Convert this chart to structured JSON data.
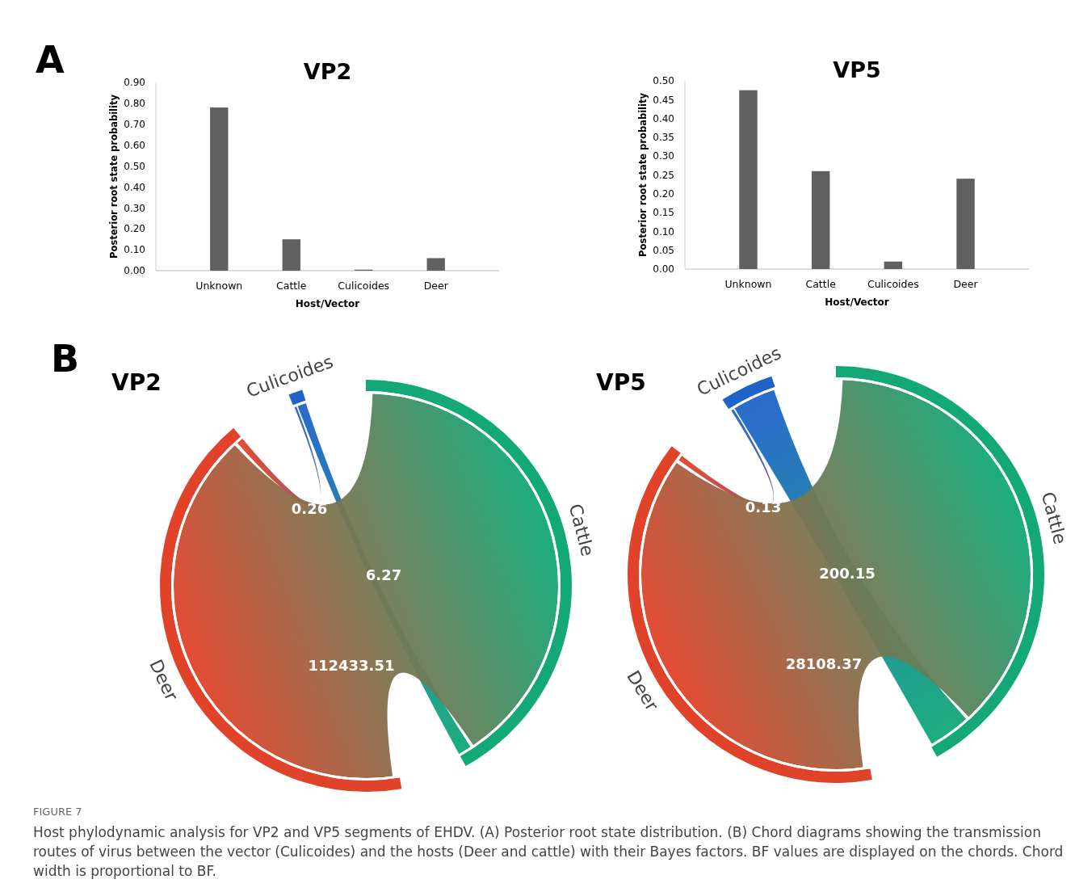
{
  "chart_data": [
    {
      "type": "bar",
      "title": "VP2",
      "xlabel": "Host/Vector",
      "ylabel": "Posterior root state probability",
      "categories": [
        "Unknown",
        "Cattle",
        "Culicoides",
        "Deer"
      ],
      "values": [
        0.78,
        0.15,
        0.005,
        0.06
      ],
      "color": "#606060",
      "ylim": [
        0,
        0.9
      ],
      "yticks": [
        {
          "value": 0,
          "label": "0.00"
        },
        {
          "value": 0.1,
          "label": "0.10"
        },
        {
          "value": 0.2,
          "label": "0.20"
        },
        {
          "value": 0.3,
          "label": "0.30"
        },
        {
          "value": 0.4,
          "label": "0.40"
        },
        {
          "value": 0.5,
          "label": "0.50"
        },
        {
          "value": 0.6,
          "label": "0.60"
        },
        {
          "value": 0.7,
          "label": "0.70"
        },
        {
          "value": 0.8,
          "label": "0.80"
        },
        {
          "value": 0.9,
          "label": "0.90"
        }
      ],
      "grid": false,
      "annotations": [
        "A"
      ]
    },
    {
      "type": "bar",
      "title": "VP5",
      "xlabel": "Host/Vector",
      "ylabel": "Posterior root state probability",
      "categories": [
        "Unknown",
        "Cattle",
        "Culicoides",
        "Deer"
      ],
      "values": [
        0.475,
        0.26,
        0.02,
        0.24
      ],
      "color": "#606060",
      "ylim": [
        0,
        0.5
      ],
      "yticks": [
        {
          "value": 0,
          "label": "0.00"
        },
        {
          "value": 0.05,
          "label": "0.05"
        },
        {
          "value": 0.1,
          "label": "0.10"
        },
        {
          "value": 0.15,
          "label": "0.15"
        },
        {
          "value": 0.2,
          "label": "0.20"
        },
        {
          "value": 0.25,
          "label": "0.25"
        },
        {
          "value": 0.3,
          "label": "0.30"
        },
        {
          "value": 0.35,
          "label": "0.35"
        },
        {
          "value": 0.4,
          "label": "0.40"
        },
        {
          "value": 0.45,
          "label": "0.45"
        },
        {
          "value": 0.5,
          "label": "0.50"
        }
      ],
      "grid": false
    },
    {
      "type": "other",
      "title": "VP2",
      "categories": [
        "Culicoides",
        "Cattle",
        "Deer"
      ],
      "colors": [
        "#1f63c9",
        "#12a878",
        "#e0432a"
      ],
      "annotations": [
        "0.26",
        "6.27",
        "112433.51",
        "B"
      ]
    },
    {
      "type": "other",
      "title": "VP5",
      "categories": [
        "Culicoides",
        "Cattle",
        "Deer"
      ],
      "colors": [
        "#1f63c9",
        "#12a878",
        "#e0432a"
      ],
      "annotations": [
        "0.13",
        "200.15",
        "28108.37",
        "FIGURE 7",
        "Host phylodynamic analysis for VP2 and VP5 segments of EHDV. (A) Posterior root state distribution. (B) Chord diagrams showing the transmission routes of virus between the vector (Culicoides) and the hosts (Deer and cattle) with their Bayes factors. BF values are displayed on the chords. Chord width is proportional to BF."
      ]
    }
  ]
}
